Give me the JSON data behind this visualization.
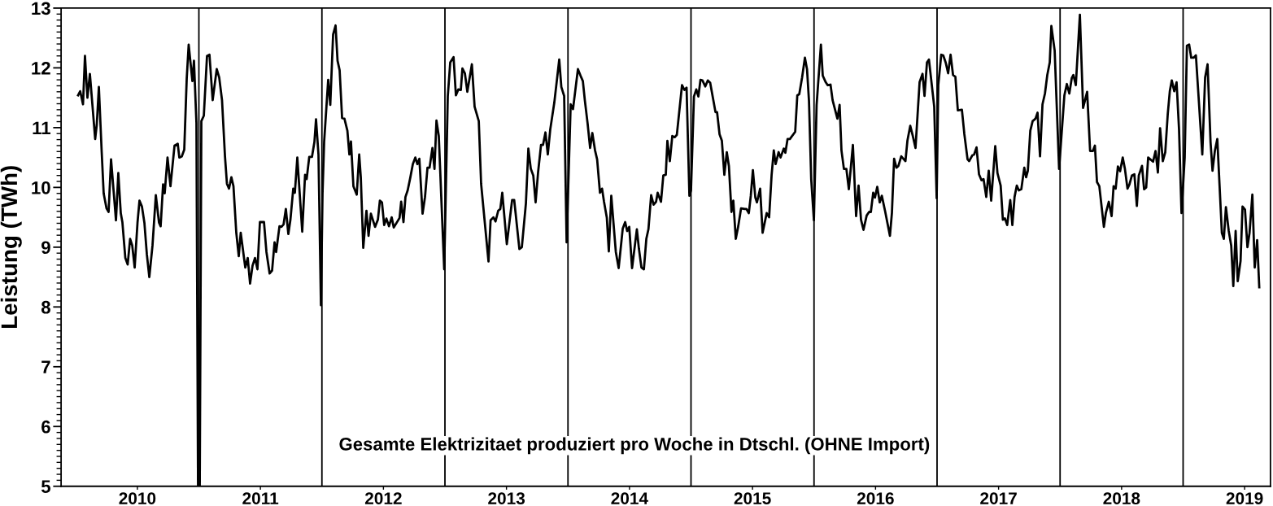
{
  "chart_data": {
    "type": "line",
    "ylabel": "Leistung (TWh)",
    "annotations": [
      "Gesamte Elektrizitaet produziert pro Woche in Dtschl. (OHNE Import)"
    ],
    "xlim": [
      2009.38,
      2019.21
    ],
    "ylim": [
      5,
      13
    ],
    "yticks": [
      5,
      6,
      7,
      8,
      9,
      10,
      11,
      12,
      13
    ],
    "xticks": [
      2010,
      2011,
      2012,
      2013,
      2014,
      2015,
      2016,
      2017,
      2018,
      2019
    ],
    "grid": false,
    "marker": "none",
    "line_style": "solid",
    "ref_lines": [
      {
        "axis": "x",
        "value": 2010.5,
        "color": "#000000"
      },
      {
        "axis": "x",
        "value": 2011.5,
        "color": "#000000"
      },
      {
        "axis": "x",
        "value": 2012.5,
        "color": "#000000"
      },
      {
        "axis": "x",
        "value": 2013.5,
        "color": "#000000"
      },
      {
        "axis": "x",
        "value": 2014.5,
        "color": "#000000"
      },
      {
        "axis": "x",
        "value": 2015.5,
        "color": "#000000"
      },
      {
        "axis": "x",
        "value": 2016.5,
        "color": "#000000"
      },
      {
        "axis": "x",
        "value": 2017.5,
        "color": "#000000"
      },
      {
        "axis": "x",
        "value": 2018.5,
        "color": "#000000"
      }
    ],
    "series": [
      {
        "color": "#000000",
        "x": [
          2009.518,
          2009.535,
          2009.558,
          2009.574,
          2009.594,
          2009.614,
          2009.657,
          2009.67,
          2009.687,
          2009.71,
          2009.726,
          2009.749,
          2009.766,
          2009.786,
          2009.826,
          2009.845,
          2009.865,
          2009.878,
          2009.902,
          2009.921,
          2009.941,
          2009.958,
          2009.978,
          2010.001,
          2010.017,
          2010.037,
          2010.057,
          2010.077,
          2010.097,
          2010.123,
          2010.15,
          2010.176,
          2010.189,
          2010.209,
          2010.222,
          2010.245,
          2010.269,
          2010.302,
          2010.328,
          2010.341,
          2010.361,
          2010.381,
          2010.401,
          2010.417,
          2010.447,
          2010.46,
          2010.48,
          2010.493,
          2010.507,
          2010.52,
          2010.54,
          2010.566,
          2010.586,
          2010.612,
          2010.645,
          2010.665,
          2010.688,
          2010.712,
          2010.728,
          2010.745,
          2010.764,
          2010.781,
          2010.804,
          2010.824,
          2010.84,
          2010.877,
          2010.897,
          2010.916,
          2010.936,
          2010.956,
          2010.976,
          2010.996,
          2011.029,
          2011.049,
          2011.075,
          2011.095,
          2011.115,
          2011.128,
          2011.155,
          2011.171,
          2011.188,
          2011.207,
          2011.227,
          2011.244,
          2011.267,
          2011.28,
          2011.3,
          2011.34,
          2011.363,
          2011.376,
          2011.397,
          2011.419,
          2011.439,
          2011.452,
          2011.472,
          2011.492,
          2011.505,
          2011.518,
          2011.551,
          2011.568,
          2011.591,
          2011.611,
          2011.627,
          2011.644,
          2011.664,
          2011.683,
          2011.707,
          2011.723,
          2011.736,
          2011.756,
          2011.783,
          2011.803,
          2011.816,
          2011.836,
          2011.862,
          2011.879,
          2011.898,
          2011.932,
          2011.955,
          2011.971,
          2011.988,
          2012.006,
          2012.024,
          2012.045,
          2012.067,
          2012.084,
          2012.131,
          2012.144,
          2012.163,
          2012.179,
          2012.197,
          2012.219,
          2012.239,
          2012.259,
          2012.276,
          2012.292,
          2012.318,
          2012.338,
          2012.358,
          2012.375,
          2012.398,
          2012.415,
          2012.431,
          2012.45,
          2012.494,
          2012.523,
          2012.543,
          2012.57,
          2012.589,
          2012.609,
          2012.629,
          2012.642,
          2012.662,
          2012.682,
          2012.719,
          2012.741,
          2012.775,
          2012.794,
          2012.854,
          2012.871,
          2012.894,
          2012.911,
          2012.933,
          2012.95,
          2012.966,
          2013.003,
          2013.046,
          2013.063,
          2013.105,
          2013.125,
          2013.158,
          2013.178,
          2013.198,
          2013.218,
          2013.237,
          2013.257,
          2013.281,
          2013.297,
          2013.317,
          2013.336,
          2013.356,
          2013.389,
          2013.429,
          2013.446,
          2013.469,
          2013.489,
          2013.522,
          2013.541,
          2013.581,
          2013.608,
          2013.621,
          2013.637,
          2013.659,
          2013.68,
          2013.698,
          2013.72,
          2013.737,
          2013.76,
          2013.777,
          2013.793,
          2013.816,
          2013.832,
          2013.852,
          2013.889,
          2013.912,
          2013.945,
          2013.965,
          2013.981,
          2013.998,
          2014.021,
          2014.06,
          2014.077,
          2014.097,
          2014.117,
          2014.137,
          2014.154,
          2014.176,
          2014.196,
          2014.216,
          2014.229,
          2014.256,
          2014.275,
          2014.295,
          2014.308,
          2014.328,
          2014.348,
          2014.368,
          2014.385,
          2014.427,
          2014.447,
          2014.464,
          2014.487,
          2014.5,
          2014.524,
          2014.543,
          2014.56,
          2014.577,
          2014.593,
          2014.616,
          2014.637,
          2014.656,
          2014.699,
          2014.712,
          2014.732,
          2014.751,
          2014.771,
          2014.791,
          2014.808,
          2014.829,
          2014.844,
          2014.864,
          2014.884,
          2014.907,
          2014.937,
          2014.95,
          2014.97,
          2014.986,
          2015.003,
          2015.023,
          2015.036,
          2015.062,
          2015.082,
          2015.115,
          2015.135,
          2015.155,
          2015.173,
          2015.188,
          2015.212,
          2015.228,
          2015.254,
          2015.267,
          2015.285,
          2015.304,
          2015.347,
          2015.364,
          2015.38,
          2015.403,
          2015.426,
          2015.443,
          2015.459,
          2015.477,
          2015.499,
          2015.521,
          2015.556,
          2015.571,
          2015.595,
          2015.611,
          2015.634,
          2015.651,
          2015.69,
          2015.708,
          2015.723,
          2015.743,
          2015.763,
          2015.783,
          2015.816,
          2015.842,
          2015.862,
          2015.882,
          2015.902,
          2015.928,
          2015.948,
          2015.962,
          2015.981,
          2015.995,
          2016.014,
          2016.034,
          2016.051,
          2016.078,
          2016.117,
          2016.133,
          2016.151,
          2016.17,
          2016.186,
          2016.209,
          2016.243,
          2016.259,
          2016.282,
          2016.303,
          2016.325,
          2016.358,
          2016.382,
          2016.398,
          2016.418,
          2016.434,
          2016.477,
          2016.497,
          2016.51,
          2016.534,
          2016.55,
          2016.57,
          2016.59,
          2016.61,
          2016.63,
          2016.649,
          2016.669,
          2016.702,
          2016.722,
          2016.748,
          2016.761,
          2016.788,
          2016.801,
          2016.821,
          2016.841,
          2016.861,
          2016.878,
          2016.9,
          2016.92,
          2016.94,
          2016.973,
          2016.991,
          2017.017,
          2017.035,
          2017.052,
          2017.07,
          2017.095,
          2017.112,
          2017.13,
          2017.148,
          2017.165,
          2017.185,
          2017.209,
          2017.224,
          2017.238,
          2017.258,
          2017.277,
          2017.3,
          2017.317,
          2017.337,
          2017.357,
          2017.377,
          2017.396,
          2017.416,
          2017.429,
          2017.456,
          2017.492,
          2017.515,
          2017.535,
          2017.555,
          2017.575,
          2017.595,
          2017.608,
          2017.628,
          2017.661,
          2017.687,
          2017.72,
          2017.744,
          2017.767,
          2017.783,
          2017.8,
          2017.819,
          2017.856,
          2017.872,
          2017.896,
          2017.919,
          2017.935,
          2017.952,
          2017.97,
          2017.988,
          2018.009,
          2018.027,
          2018.048,
          2018.064,
          2018.084,
          2018.104,
          2018.124,
          2018.14,
          2018.166,
          2018.183,
          2018.2,
          2018.216,
          2018.256,
          2018.276,
          2018.295,
          2018.313,
          2018.335,
          2018.355,
          2018.375,
          2018.392,
          2018.408,
          2018.428,
          2018.447,
          2018.467,
          2018.487,
          2018.513,
          2018.531,
          2018.549,
          2018.566,
          2018.586,
          2018.604,
          2018.656,
          2018.679,
          2018.699,
          2018.723,
          2018.739,
          2018.758,
          2018.778,
          2018.815,
          2018.831,
          2018.848,
          2018.871,
          2018.891,
          2018.908,
          2018.927,
          2018.944,
          2018.967,
          2018.983,
          2019.003,
          2019.023,
          2019.04,
          2019.063,
          2019.082,
          2019.102,
          2019.119
        ],
        "values": [
          11.54,
          11.61,
          11.39,
          12.2,
          11.5,
          11.9,
          10.81,
          11.05,
          11.68,
          10.59,
          9.9,
          9.65,
          9.59,
          10.47,
          9.45,
          10.24,
          9.57,
          9.42,
          8.82,
          8.71,
          9.14,
          9.03,
          8.66,
          9.41,
          9.78,
          9.68,
          9.41,
          8.88,
          8.5,
          9.03,
          9.87,
          9.41,
          9.35,
          10.05,
          9.9,
          10.5,
          10.02,
          10.7,
          10.73,
          10.5,
          10.52,
          10.63,
          11.82,
          12.39,
          11.78,
          12.12,
          11.08,
          5,
          5,
          11.11,
          11.2,
          12.2,
          12.22,
          11.46,
          11.98,
          11.84,
          11.46,
          10.52,
          10.06,
          9.98,
          10.17,
          10.02,
          9.24,
          8.85,
          9.24,
          8.66,
          8.82,
          8.39,
          8.69,
          8.82,
          8.63,
          9.42,
          9.42,
          8.92,
          8.56,
          8.61,
          9.08,
          8.92,
          9.35,
          9.34,
          9.38,
          9.64,
          9.22,
          9.46,
          9.98,
          9.91,
          10.5,
          9.26,
          10.21,
          10.14,
          10.51,
          10.51,
          10.76,
          11.14,
          10.55,
          8.03,
          9.9,
          10.76,
          11.8,
          11.38,
          12.56,
          12.71,
          12.12,
          11.96,
          11.16,
          11.15,
          10.95,
          10.55,
          10.77,
          10.02,
          9.88,
          10.55,
          10.17,
          8.99,
          9.61,
          9.19,
          9.56,
          9.34,
          9.46,
          9.78,
          9.75,
          9.37,
          9.48,
          9.35,
          9.5,
          9.33,
          9.49,
          9.76,
          9.42,
          9.84,
          9.95,
          10.17,
          10.39,
          10.5,
          10.39,
          10.48,
          9.56,
          9.84,
          10.33,
          10.33,
          10.66,
          10.31,
          11.12,
          10.86,
          8.63,
          11.52,
          12.09,
          12.18,
          11.54,
          11.64,
          11.63,
          11.99,
          11.91,
          11.6,
          12.06,
          11.35,
          11.11,
          10.06,
          8.76,
          9.45,
          9.5,
          9.43,
          9.61,
          9.64,
          9.91,
          9.05,
          9.79,
          9.79,
          8.97,
          9.0,
          9.73,
          10.65,
          10.31,
          10.2,
          9.75,
          10.25,
          10.71,
          10.71,
          10.92,
          10.55,
          10.97,
          11.42,
          12.14,
          11.68,
          11.53,
          9.08,
          11.39,
          11.31,
          11.98,
          11.84,
          11.78,
          11.46,
          11.08,
          10.66,
          10.91,
          10.62,
          10.47,
          9.91,
          9.98,
          9.76,
          9.49,
          8.93,
          9.86,
          8.92,
          8.65,
          9.31,
          9.42,
          9.27,
          9.34,
          8.65,
          9.3,
          8.97,
          8.66,
          8.63,
          9.14,
          9.3,
          9.87,
          9.71,
          9.76,
          9.91,
          9.76,
          10.2,
          10.21,
          10.78,
          10.44,
          10.86,
          10.84,
          10.88,
          11.71,
          11.63,
          11.67,
          9.86,
          9.95,
          11.52,
          11.64,
          11.52,
          11.8,
          11.79,
          11.69,
          11.79,
          11.75,
          11.26,
          11.26,
          10.89,
          10.78,
          10.21,
          10.59,
          10.36,
          9.59,
          9.78,
          9.14,
          9.35,
          9.65,
          9.64,
          9.64,
          9.57,
          9.86,
          10.29,
          9.83,
          9.75,
          9.98,
          9.24,
          9.57,
          9.5,
          10.2,
          10.62,
          10.39,
          10.59,
          10.5,
          10.65,
          10.58,
          10.81,
          10.81,
          10.93,
          11.54,
          11.56,
          11.84,
          12.17,
          11.98,
          11.45,
          10.14,
          9.45,
          11.38,
          12.39,
          11.87,
          11.76,
          11.71,
          11.72,
          11.46,
          11.15,
          11.38,
          10.62,
          10.31,
          10.31,
          9.97,
          10.71,
          9.52,
          10.03,
          9.46,
          9.29,
          9.53,
          9.59,
          9.59,
          9.91,
          9.83,
          10.01,
          9.75,
          9.86,
          9.6,
          9.19,
          9.57,
          10.48,
          10.33,
          10.36,
          10.52,
          10.44,
          10.78,
          11.03,
          10.86,
          10.66,
          11.76,
          11.9,
          11.53,
          12.09,
          12.14,
          11.35,
          9.82,
          11.71,
          12.22,
          12.21,
          12.09,
          11.91,
          12.22,
          11.88,
          11.85,
          11.29,
          11.3,
          10.89,
          10.47,
          10.44,
          10.54,
          10.55,
          10.67,
          10.22,
          10.12,
          10.14,
          9.84,
          10.28,
          9.78,
          10.69,
          10.24,
          10.03,
          9.46,
          9.48,
          9.37,
          9.79,
          9.37,
          9.84,
          10.03,
          9.95,
          9.97,
          10.33,
          10.17,
          10.28,
          10.95,
          11.11,
          11.15,
          11.25,
          10.52,
          11.39,
          11.57,
          11.88,
          12.09,
          12.7,
          12.29,
          10.31,
          10.97,
          11.54,
          11.73,
          11.57,
          11.83,
          11.88,
          11.71,
          12.89,
          11.33,
          11.6,
          10.61,
          10.61,
          10.7,
          10.09,
          10.02,
          9.34,
          9.57,
          9.76,
          9.52,
          10.02,
          9.98,
          10.35,
          10.27,
          10.5,
          10.31,
          9.98,
          10.05,
          10.2,
          10.22,
          9.69,
          10.2,
          10.36,
          9.97,
          10.0,
          10.5,
          10.43,
          10.61,
          10.25,
          10.99,
          10.44,
          10.59,
          11.22,
          11.61,
          11.79,
          11.61,
          11.76,
          10.97,
          9.57,
          10.5,
          12.37,
          12.39,
          12.17,
          12.17,
          12.21,
          10.55,
          11.84,
          12.06,
          10.76,
          10.28,
          10.61,
          10.81,
          9.24,
          9.14,
          9.67,
          9.27,
          9.03,
          8.35,
          9.27,
          8.43,
          8.77,
          9.68,
          9.63,
          9.0,
          9.24,
          9.88,
          8.66,
          9.12,
          8.33
        ]
      }
    ]
  }
}
